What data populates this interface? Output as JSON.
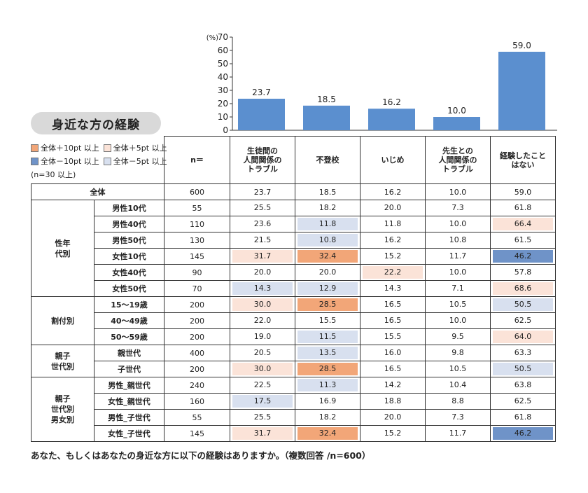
{
  "chart_data": {
    "type": "bar",
    "unit_label": "(%)",
    "categories": [
      "生徒間の人間関係のトラブル",
      "不登校",
      "いじめ",
      "先生との人間関係のトラブル",
      "経験したことはない"
    ],
    "values": [
      23.7,
      18.5,
      16.2,
      10.0,
      59.0
    ],
    "value_labels": [
      "23.7",
      "18.5",
      "16.2",
      "10.0",
      "59.0"
    ],
    "ylim": [
      0,
      70
    ],
    "yticks": [
      "0",
      "10",
      "20",
      "30",
      "40",
      "50",
      "60",
      "70"
    ],
    "bar_color": "#5b8fcf"
  },
  "title": "身近な方の経験",
  "legend": {
    "items": [
      {
        "label": "全体＋10pt 以上",
        "color": "#f2a678"
      },
      {
        "label": "全体＋5pt 以上",
        "color": "#fbe3d8"
      },
      {
        "label": "全体－10pt 以上",
        "color": "#6f93c8"
      },
      {
        "label": "全体－5pt 以上",
        "color": "#d8e0ef"
      }
    ],
    "note": "(n=30 以上)"
  },
  "table": {
    "n_header": "n＝",
    "headers": [
      [
        "生徒間の",
        "人間関係の",
        "トラブル"
      ],
      [
        "不登校"
      ],
      [
        "いじめ"
      ],
      [
        "先生との",
        "人間関係の",
        "トラブル"
      ],
      [
        "経験したこと",
        "はない"
      ]
    ],
    "total": {
      "label": "全体",
      "n": "600",
      "values": [
        "23.7",
        "18.5",
        "16.2",
        "10.0",
        "59.0"
      ]
    },
    "groups": [
      {
        "label": [
          "性年",
          "代別"
        ],
        "rows": [
          {
            "label": "男性10代",
            "n": "55",
            "values": [
              "25.5",
              "18.2",
              "20.0",
              "7.3",
              "61.8"
            ],
            "hl": [
              "",
              "",
              "",
              "",
              ""
            ]
          },
          {
            "label": "男性40代",
            "n": "110",
            "values": [
              "23.6",
              "11.8",
              "11.8",
              "10.0",
              "66.4"
            ],
            "hl": [
              "",
              "m5",
              "",
              "",
              "p5"
            ]
          },
          {
            "label": "男性50代",
            "n": "130",
            "values": [
              "21.5",
              "10.8",
              "16.2",
              "10.8",
              "61.5"
            ],
            "hl": [
              "",
              "m5",
              "",
              "",
              ""
            ]
          },
          {
            "label": "女性10代",
            "n": "145",
            "values": [
              "31.7",
              "32.4",
              "15.2",
              "11.7",
              "46.2"
            ],
            "hl": [
              "p5",
              "p10",
              "",
              "",
              "m10"
            ]
          },
          {
            "label": "女性40代",
            "n": "90",
            "values": [
              "20.0",
              "20.0",
              "22.2",
              "10.0",
              "57.8"
            ],
            "hl": [
              "",
              "",
              "p5",
              "",
              ""
            ]
          },
          {
            "label": "女性50代",
            "n": "70",
            "values": [
              "14.3",
              "12.9",
              "14.3",
              "7.1",
              "68.6"
            ],
            "hl": [
              "m5",
              "m5",
              "",
              "",
              "p5"
            ]
          }
        ]
      },
      {
        "label": [
          "割付別"
        ],
        "rows": [
          {
            "label": "15～19歳",
            "n": "200",
            "values": [
              "30.0",
              "28.5",
              "16.5",
              "10.5",
              "50.5"
            ],
            "hl": [
              "p5",
              "p10",
              "",
              "",
              "m5"
            ]
          },
          {
            "label": "40～49歳",
            "n": "200",
            "values": [
              "22.0",
              "15.5",
              "16.5",
              "10.0",
              "62.5"
            ],
            "hl": [
              "",
              "",
              "",
              "",
              ""
            ]
          },
          {
            "label": "50～59歳",
            "n": "200",
            "values": [
              "19.0",
              "11.5",
              "15.5",
              "9.5",
              "64.0"
            ],
            "hl": [
              "",
              "m5",
              "",
              "",
              "p5"
            ]
          }
        ]
      },
      {
        "label": [
          "親子",
          "世代別"
        ],
        "rows": [
          {
            "label": "親世代",
            "n": "400",
            "values": [
              "20.5",
              "13.5",
              "16.0",
              "9.8",
              "63.3"
            ],
            "hl": [
              "",
              "m5",
              "",
              "",
              ""
            ]
          },
          {
            "label": "子世代",
            "n": "200",
            "values": [
              "30.0",
              "28.5",
              "16.5",
              "10.5",
              "50.5"
            ],
            "hl": [
              "p5",
              "p10",
              "",
              "",
              "m5"
            ]
          }
        ]
      },
      {
        "label": [
          "親子",
          "世代別",
          "男女別"
        ],
        "rows": [
          {
            "label": "男性_親世代",
            "n": "240",
            "values": [
              "22.5",
              "11.3",
              "14.2",
              "10.4",
              "63.8"
            ],
            "hl": [
              "",
              "m5",
              "",
              "",
              ""
            ]
          },
          {
            "label": "女性_親世代",
            "n": "160",
            "values": [
              "17.5",
              "16.9",
              "18.8",
              "8.8",
              "62.5"
            ],
            "hl": [
              "m5",
              "",
              "",
              "",
              ""
            ]
          },
          {
            "label": "男性_子世代",
            "n": "55",
            "values": [
              "25.5",
              "18.2",
              "20.0",
              "7.3",
              "61.8"
            ],
            "hl": [
              "",
              "",
              "",
              "",
              ""
            ]
          },
          {
            "label": "女性_子世代",
            "n": "145",
            "values": [
              "31.7",
              "32.4",
              "15.2",
              "11.7",
              "46.2"
            ],
            "hl": [
              "p5",
              "p10",
              "",
              "",
              "m10"
            ]
          }
        ]
      }
    ]
  },
  "footer": "あなた、もしくはあなたの身近な方に以下の経験はありますか。（複数回答 /n=600）"
}
